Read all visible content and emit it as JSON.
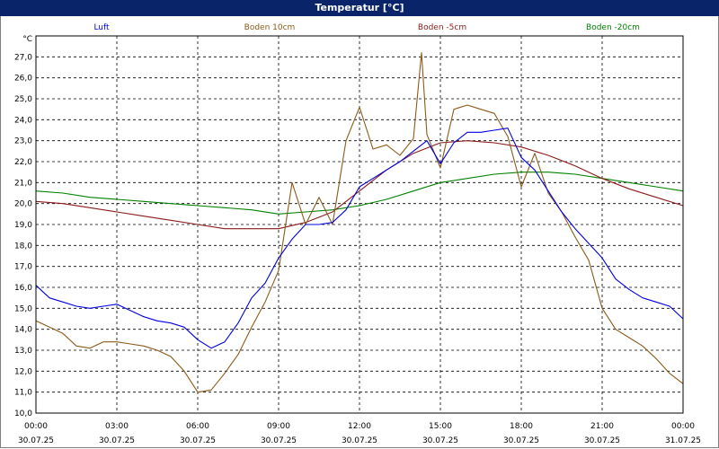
{
  "window": {
    "title": "Temperatur [°C]"
  },
  "chart_data": {
    "type": "line",
    "title": "Temperatur [°C]",
    "ylabel": "°C",
    "ylim": [
      10.0,
      28.0
    ],
    "yticks": [
      "10,0",
      "11,0",
      "12,0",
      "13,0",
      "14,0",
      "15,0",
      "16,0",
      "17,0",
      "18,0",
      "19,0",
      "20,0",
      "21,0",
      "22,0",
      "23,0",
      "24,0",
      "25,0",
      "26,0",
      "27,0"
    ],
    "xlim_hours": [
      0,
      24
    ],
    "xticks": [
      {
        "time": "00:00",
        "date": "30.07.25"
      },
      {
        "time": "03:00",
        "date": "30.07.25"
      },
      {
        "time": "06:00",
        "date": "30.07.25"
      },
      {
        "time": "09:00",
        "date": "30.07.25"
      },
      {
        "time": "12:00",
        "date": "30.07.25"
      },
      {
        "time": "15:00",
        "date": "30.07.25"
      },
      {
        "time": "18:00",
        "date": "30.07.25"
      },
      {
        "time": "21:00",
        "date": "30.07.25"
      },
      {
        "time": "00:00",
        "date": "31.07.25"
      }
    ],
    "grid": true,
    "legend_position": "top",
    "series": [
      {
        "name": "Luft",
        "color": "#0000e0",
        "x": [
          0,
          0.5,
          1,
          1.5,
          2,
          2.5,
          3,
          3.5,
          4,
          4.5,
          5,
          5.5,
          6,
          6.5,
          7,
          7.5,
          8,
          8.5,
          9,
          9.5,
          10,
          10.5,
          11,
          11.5,
          12,
          12.5,
          13,
          13.5,
          14,
          14.5,
          15,
          15.5,
          16,
          16.5,
          17,
          17.5,
          18,
          18.5,
          19,
          19.5,
          20,
          20.5,
          21,
          21.5,
          22,
          22.5,
          23,
          23.5,
          24
        ],
        "y": [
          16.1,
          15.5,
          15.3,
          15.1,
          15.0,
          15.1,
          15.2,
          14.9,
          14.6,
          14.4,
          14.3,
          14.1,
          13.5,
          13.1,
          13.4,
          14.3,
          15.5,
          16.2,
          17.4,
          18.3,
          19.0,
          19.0,
          19.1,
          19.7,
          20.8,
          21.2,
          21.6,
          22.0,
          22.5,
          23.0,
          21.9,
          22.9,
          23.4,
          23.4,
          23.5,
          23.6,
          22.2,
          21.6,
          20.6,
          19.6,
          18.8,
          18.1,
          17.4,
          16.4,
          15.9,
          15.5,
          15.3,
          15.1,
          14.5
        ]
      },
      {
        "name": "Boden 10cm",
        "color": "#8b5a1a",
        "x": [
          0,
          0.5,
          1,
          1.5,
          2,
          2.5,
          3,
          3.5,
          4,
          4.5,
          5,
          5.5,
          6,
          6.5,
          7,
          7.5,
          8,
          8.5,
          9,
          9.5,
          10,
          10.5,
          11,
          11.5,
          12,
          12.5,
          13,
          13.5,
          14,
          14.3,
          14.5,
          15,
          15.5,
          16,
          16.5,
          17,
          17.5,
          18,
          18.5,
          19,
          19.5,
          20,
          20.5,
          21,
          21.5,
          22,
          22.5,
          23,
          23.5,
          24
        ],
        "y": [
          14.4,
          14.1,
          13.8,
          13.2,
          13.1,
          13.4,
          13.4,
          13.3,
          13.2,
          13.0,
          12.7,
          12.0,
          11.0,
          11.1,
          11.9,
          12.8,
          14.1,
          15.3,
          16.8,
          21.0,
          19.0,
          20.3,
          19.0,
          23.0,
          24.6,
          22.6,
          22.8,
          22.3,
          23.1,
          27.2,
          23.3,
          21.7,
          24.5,
          24.7,
          24.5,
          24.3,
          23.2,
          20.8,
          22.4,
          20.5,
          19.6,
          18.4,
          17.3,
          15.0,
          14.0,
          13.6,
          13.2,
          12.6,
          11.9,
          11.4
        ]
      },
      {
        "name": "Boden -5cm",
        "color": "#8b1a1a",
        "x": [
          0,
          1,
          2,
          3,
          4,
          5,
          6,
          7,
          8,
          9,
          10,
          11,
          12,
          13,
          14,
          15,
          16,
          17,
          18,
          19,
          20,
          21,
          22,
          23,
          24
        ],
        "y": [
          20.1,
          20.0,
          19.8,
          19.6,
          19.4,
          19.2,
          19.0,
          18.8,
          18.8,
          18.8,
          19.1,
          19.6,
          20.6,
          21.6,
          22.4,
          22.9,
          23.0,
          22.9,
          22.7,
          22.3,
          21.8,
          21.2,
          20.7,
          20.3,
          19.9
        ]
      },
      {
        "name": "Boden -20cm",
        "color": "#008000",
        "x": [
          0,
          1,
          2,
          3,
          4,
          5,
          6,
          7,
          8,
          9,
          10,
          11,
          12,
          13,
          14,
          15,
          16,
          17,
          18,
          19,
          20,
          21,
          22,
          23,
          24
        ],
        "y": [
          20.6,
          20.5,
          20.3,
          20.2,
          20.1,
          20.0,
          19.9,
          19.8,
          19.7,
          19.5,
          19.6,
          19.7,
          19.9,
          20.2,
          20.6,
          21.0,
          21.2,
          21.4,
          21.5,
          21.5,
          21.4,
          21.2,
          21.0,
          20.8,
          20.6
        ]
      }
    ]
  }
}
